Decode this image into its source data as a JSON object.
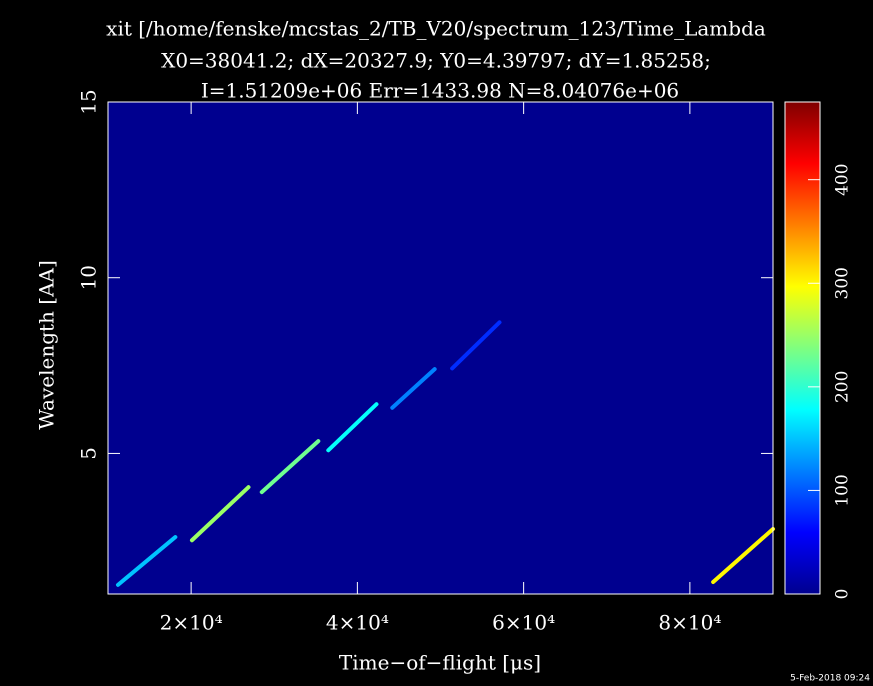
{
  "chart_data": {
    "type": "heatmap",
    "title": "xit [/home/fenske/mcstas_2/TB_V20/spectrum_123/Time_Lambda",
    "subtitle": "X0=38041.2; dX=20327.9; Y0=4.39797; dY=1.85258;",
    "annotation": "I=1.51209e+06 Err=1433.98 N=8.04076e+06",
    "timestamp": "5-Feb-2018 09:24",
    "x_label": "Time−of−flight [μs]",
    "y_label": "Wavelength [AA]",
    "xlim": [
      10000,
      90000
    ],
    "xticks": [
      {
        "value": 20000,
        "label": "2×10⁴"
      },
      {
        "value": 40000,
        "label": "4×10⁴"
      },
      {
        "value": 60000,
        "label": "6×10⁴"
      },
      {
        "value": 80000,
        "label": "8×10⁴"
      }
    ],
    "ylim": [
      1,
      15
    ],
    "yticks": [
      5,
      10,
      15
    ],
    "zlim": [
      0,
      475
    ],
    "zticks": [
      0,
      100,
      200,
      300,
      400
    ],
    "background": "#00008f",
    "streaks": [
      {
        "x": [
          11200,
          18100
        ],
        "y": [
          1.26,
          2.62
        ],
        "value": 150
      },
      {
        "x": [
          20100,
          26900
        ],
        "y": [
          2.53,
          4.04
        ],
        "value": 250
      },
      {
        "x": [
          28500,
          35300
        ],
        "y": [
          3.9,
          5.35
        ],
        "value": 230
      },
      {
        "x": [
          36500,
          42300
        ],
        "y": [
          5.09,
          6.4
        ],
        "value": 180
      },
      {
        "x": [
          44200,
          49300
        ],
        "y": [
          6.3,
          7.4
        ],
        "value": 120
      },
      {
        "x": [
          51400,
          57100
        ],
        "y": [
          7.42,
          8.73
        ],
        "value": 80
      },
      {
        "x": [
          82800,
          90000
        ],
        "y": [
          1.34,
          2.85
        ],
        "value": 300
      }
    ]
  }
}
